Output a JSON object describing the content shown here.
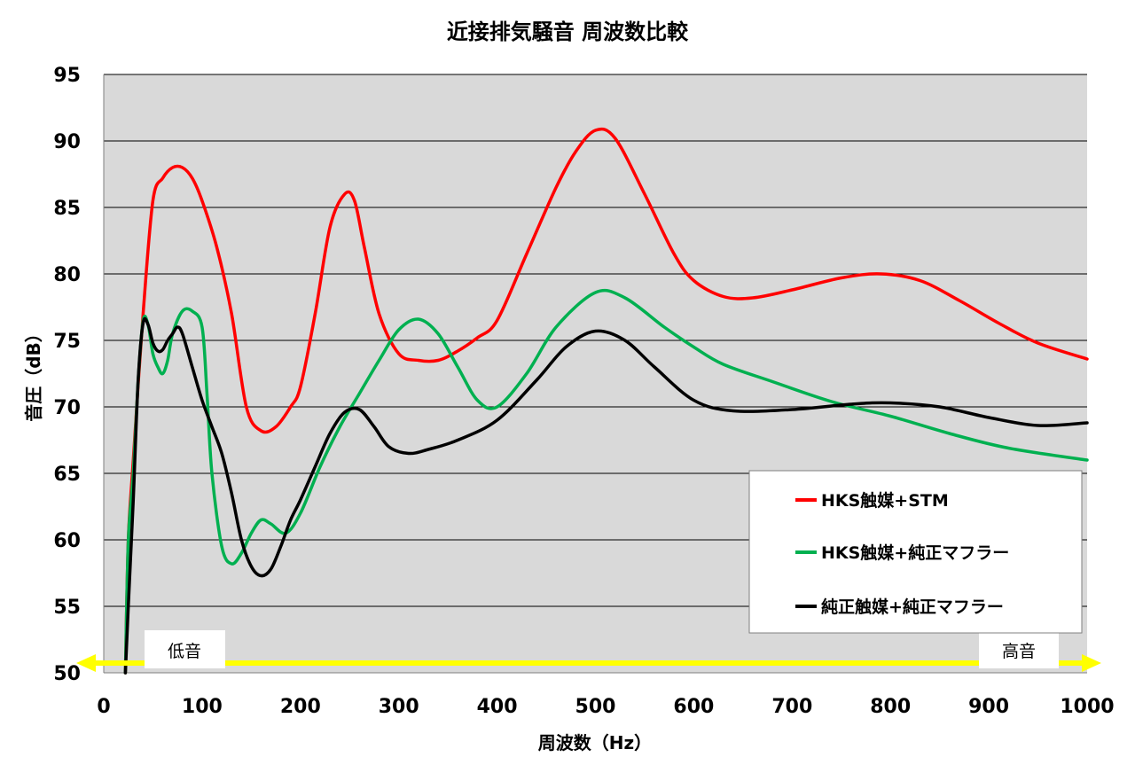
{
  "chart_data": {
    "type": "line",
    "title": "近接排気騒音 周波数比較",
    "xlabel": "周波数（Hz）",
    "ylabel": "音圧（dB）",
    "xlim": [
      0,
      1000
    ],
    "ylim": [
      50,
      95
    ],
    "x_ticks": [
      0,
      100,
      200,
      300,
      400,
      500,
      600,
      700,
      800,
      900,
      1000
    ],
    "y_ticks": [
      50,
      55,
      60,
      65,
      70,
      75,
      80,
      85,
      90,
      95
    ],
    "grid": true,
    "legend_position": "bottom-right",
    "plot_background": "#d9d9d9",
    "series": [
      {
        "name": "HKS触媒+STM",
        "color": "#ff0000",
        "x": [
          22,
          25,
          30,
          40,
          50,
          60,
          70,
          80,
          90,
          100,
          115,
          130,
          145,
          160,
          175,
          190,
          200,
          215,
          230,
          245,
          255,
          265,
          280,
          300,
          320,
          340,
          360,
          380,
          400,
          430,
          460,
          480,
          500,
          520,
          550,
          580,
          600,
          630,
          660,
          700,
          750,
          790,
          830,
          870,
          910,
          950,
          1000
        ],
        "values": [
          50,
          60,
          66,
          77,
          85.5,
          87.2,
          88.0,
          88.0,
          87.2,
          85.5,
          82.0,
          77.0,
          70.0,
          68.2,
          68.5,
          70.0,
          71.5,
          77.0,
          83.5,
          86.0,
          85.5,
          82.0,
          77.0,
          74.0,
          73.5,
          73.5,
          74.2,
          75.2,
          76.5,
          81.5,
          86.5,
          89.2,
          90.8,
          90.2,
          86.0,
          81.5,
          79.5,
          78.3,
          78.2,
          78.8,
          79.7,
          80.0,
          79.5,
          78.0,
          76.3,
          74.8,
          73.6
        ]
      },
      {
        "name": "HKS触媒+純正マフラー",
        "color": "#00b050",
        "x": [
          22,
          25,
          30,
          35,
          40,
          45,
          50,
          55,
          60,
          65,
          70,
          80,
          90,
          100,
          105,
          110,
          120,
          130,
          140,
          150,
          160,
          170,
          185,
          200,
          220,
          240,
          260,
          280,
          300,
          320,
          340,
          360,
          380,
          400,
          430,
          460,
          500,
          530,
          570,
          600,
          630,
          680,
          740,
          800,
          860,
          920,
          1000
        ],
        "values": [
          50,
          60,
          65,
          72,
          76.5,
          76.2,
          74.0,
          73.0,
          72.5,
          73.5,
          75.5,
          77.2,
          77.2,
          76.0,
          71.0,
          65.0,
          59.5,
          58.2,
          59.0,
          60.5,
          61.5,
          61.2,
          60.5,
          62.0,
          65.5,
          68.5,
          71.0,
          73.5,
          75.8,
          76.6,
          75.5,
          73.0,
          70.5,
          70.0,
          72.5,
          76.0,
          78.6,
          78.2,
          76.0,
          74.5,
          73.2,
          71.9,
          70.4,
          69.3,
          68.0,
          66.9,
          66.0
        ]
      },
      {
        "name": "純正触媒+純正マフラー",
        "color": "#000000",
        "x": [
          22,
          25,
          30,
          35,
          40,
          45,
          50,
          55,
          60,
          65,
          70,
          75,
          80,
          90,
          100,
          110,
          120,
          130,
          140,
          150,
          160,
          170,
          180,
          190,
          200,
          215,
          230,
          245,
          260,
          275,
          290,
          310,
          330,
          360,
          400,
          440,
          470,
          500,
          530,
          560,
          600,
          640,
          700,
          760,
          800,
          850,
          900,
          950,
          1000
        ],
        "values": [
          50,
          55,
          63,
          72,
          76.3,
          76.2,
          74.8,
          74.2,
          74.3,
          75.0,
          75.5,
          76.0,
          75.5,
          73.0,
          70.5,
          68.5,
          66.5,
          63.5,
          60.0,
          58.0,
          57.3,
          57.8,
          59.5,
          61.5,
          63.0,
          65.5,
          68.0,
          69.6,
          69.8,
          68.5,
          67.0,
          66.5,
          66.8,
          67.5,
          69.0,
          72.0,
          74.5,
          75.7,
          75.0,
          73.0,
          70.5,
          69.7,
          69.8,
          70.2,
          70.3,
          70.0,
          69.2,
          68.6,
          68.8
        ]
      }
    ],
    "annotations": {
      "low_label": "低音",
      "high_label": "高音",
      "arrow_color": "#ffff00"
    }
  }
}
